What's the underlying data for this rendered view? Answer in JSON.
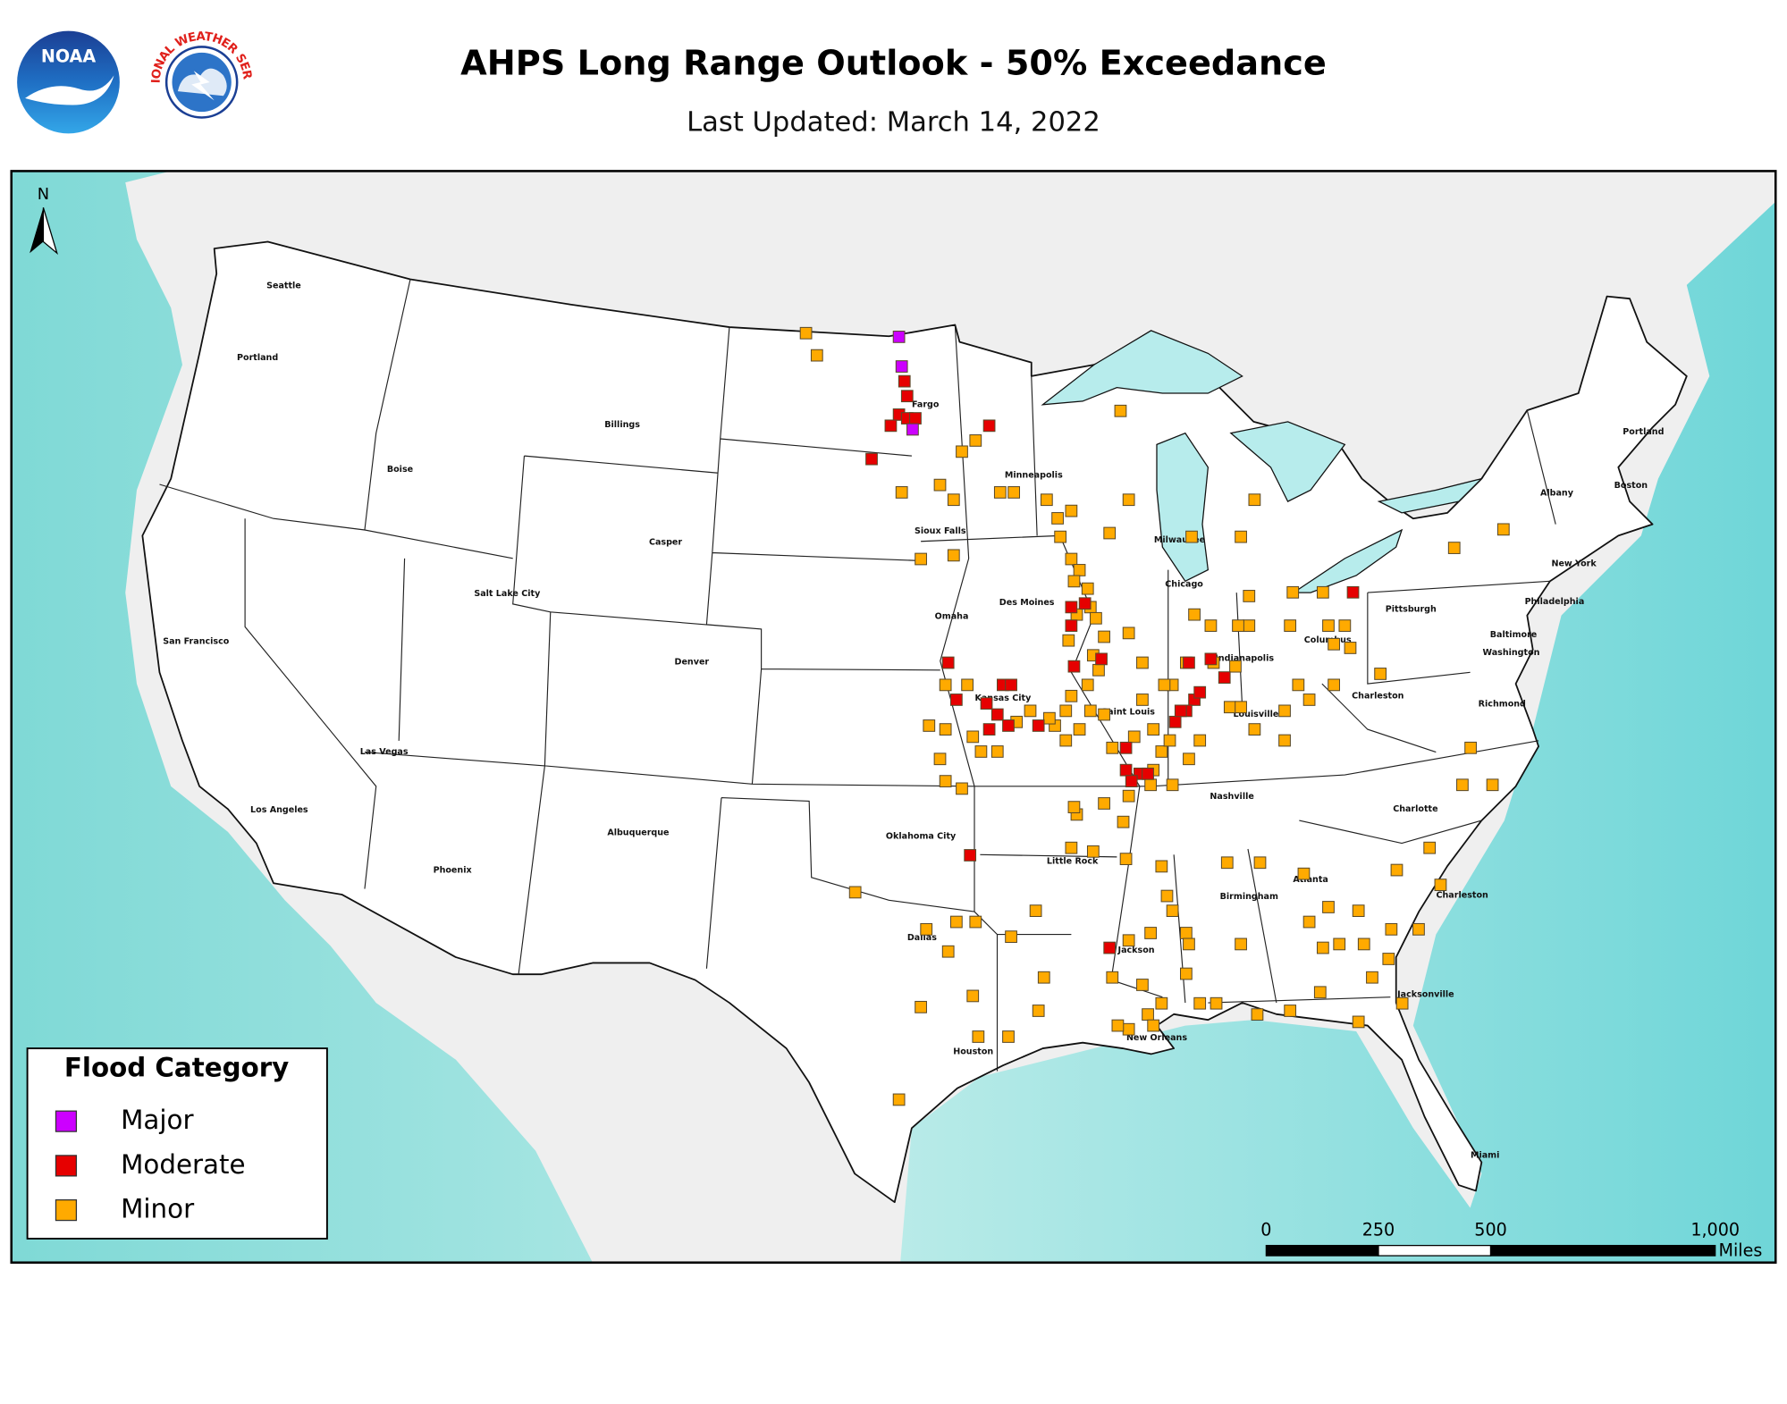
{
  "header": {
    "title": "AHPS Long Range Outlook - 50% Exceedance",
    "subtitle": "Last Updated: March 14, 2022",
    "logos": [
      "NOAA",
      "NATIONAL WEATHER SERVICE"
    ]
  },
  "map": {
    "type": "map",
    "north_label": "N",
    "cities": [
      "Seattle",
      "Portland",
      "Billings",
      "Boise",
      "Casper",
      "Salt Lake City",
      "San Francisco",
      "Denver",
      "Las Vegas",
      "Los Angeles",
      "Albuquerque",
      "Phoenix",
      "Oklahoma City",
      "Dallas",
      "Houston",
      "Little Rock",
      "Jackson",
      "New Orleans",
      "Birmingham",
      "Atlanta",
      "Nashville",
      "Charlotte",
      "Charleston",
      "Jacksonville",
      "Miami",
      "Kansas City",
      "Omaha",
      "Sioux Falls",
      "Des Moines",
      "Minneapolis",
      "Fargo",
      "Saint Louis",
      "Chicago",
      "Milwaukee",
      "Indianapolis",
      "Louisville",
      "Columbus",
      "Charleston",
      "Pittsburgh",
      "Richmond",
      "Washington",
      "Baltimore",
      "Philadelphia",
      "New York",
      "Albany",
      "Boston",
      "Portland"
    ],
    "legend_title": "Flood Category",
    "series": [
      {
        "name": "Major",
        "color": "#cc00ff",
        "lon": [
          -98.3,
          -98.2,
          -97.8
        ],
        "lat": [
          48.9,
          48.1,
          46.4
        ]
      },
      {
        "name": "Moderate",
        "color": "#e60000",
        "lon": [
          -98.1,
          -98.0,
          -98.3,
          -98.0,
          -97.7,
          -98.6,
          -95.0,
          -99.3,
          -96.5,
          -96.2,
          -94.5,
          -94.2,
          -95.1,
          -94.7,
          -95.0,
          -94.3,
          -93.2,
          -92.0,
          -92.0,
          -91.5,
          -91.9,
          -90.9,
          -87.7,
          -86.9,
          -86.4,
          -87.5,
          -87.8,
          -88.2,
          -88.0,
          -87.3,
          -90.0,
          -89.5,
          -90.0,
          -89.2,
          -89.8,
          -95.7,
          -90.6,
          -81.7
        ],
        "lat": [
          47.7,
          47.3,
          46.8,
          46.7,
          46.7,
          46.5,
          46.5,
          45.6,
          40.1,
          39.1,
          39.5,
          39.5,
          39.0,
          38.7,
          38.3,
          38.4,
          38.4,
          41.6,
          41.1,
          41.7,
          40.0,
          40.2,
          40.1,
          40.2,
          39.7,
          39.1,
          38.8,
          38.5,
          38.8,
          39.3,
          37.8,
          37.1,
          37.2,
          37.1,
          36.9,
          34.9,
          32.4,
          42.0
        ]
      },
      {
        "name": "Minor",
        "color": "#ffaa00",
        "lon": [
          -101.7,
          -101.3,
          -95.5,
          -96.0,
          -98.2,
          -96.8,
          -96.3,
          -94.6,
          -94.1,
          -92.9,
          -92.0,
          -92.5,
          -92.4,
          -92.0,
          -91.7,
          -91.4,
          -91.3,
          -90.6,
          -89.9,
          -90.2,
          -85.3,
          -85.8,
          -87.6,
          -83.9,
          -82.8,
          -85.5,
          -86.9,
          -87.5,
          -85.5,
          -87.8,
          -86.8,
          -86.0,
          -85.9,
          -84.0,
          -82.6,
          -82.0,
          -82.4,
          -81.8,
          -80.7,
          -78.0,
          -76.2,
          -83.7,
          -82.4,
          -83.3,
          -84.2,
          -84.2,
          -85.3,
          -86.2,
          -85.8,
          -87.3,
          -87.7,
          -88.7,
          -89.0,
          -88.4,
          -88.3,
          -88.6,
          -89.4,
          -89.4,
          -89.9,
          -90.8,
          -91.2,
          -91.0,
          -91.4,
          -92.0,
          -92.2,
          -92.6,
          -92.2,
          -91.3,
          -90.8,
          -91.7,
          -90.5,
          -89.7,
          -89.0,
          -92.1,
          -91.8,
          -91.1,
          -91.9,
          -92.8,
          -93.5,
          -94.0,
          -94.7,
          -95.3,
          -95.6,
          -96.6,
          -96.8,
          -96.6,
          -96.0,
          -97.2,
          -95.8,
          -96.6,
          -97.5,
          -96.3,
          -88.3,
          -89.1,
          -89.9,
          -90.1,
          -90.8,
          -91.8,
          -92.0,
          -91.2,
          -90.0,
          -88.7,
          -88.5,
          -88.3,
          -87.8,
          -87.7,
          -89.1,
          -89.9,
          -90.5,
          -89.4,
          -88.7,
          -87.8,
          -87.3,
          -89.2,
          -89.0,
          -89.9,
          -90.3,
          -86.3,
          -85.1,
          -83.5,
          -82.6,
          -81.5,
          -82.2,
          -81.3,
          -80.3,
          -80.4,
          -81.0,
          -82.8,
          -83.3,
          -81.5,
          -84.0,
          -82.9,
          -85.2,
          -85.8,
          -86.7,
          -78.9,
          -80.1,
          -78.5,
          -79.3,
          -79.9,
          -77.7,
          -76.6,
          -77.4,
          -93.3,
          -94.2,
          -93.0,
          -93.2,
          -94.3,
          -95.4,
          -95.6,
          -97.5,
          -96.5,
          -95.5,
          -96.2,
          -97.3,
          -99.9,
          -98.3,
          -91.9
        ],
        "lat": [
          49.0,
          48.4,
          46.1,
          45.8,
          44.7,
          44.9,
          44.5,
          44.7,
          44.7,
          44.5,
          44.2,
          44.0,
          43.5,
          42.9,
          42.6,
          42.1,
          41.6,
          43.6,
          44.5,
          46.9,
          44.5,
          43.5,
          43.5,
          42.0,
          42.0,
          41.9,
          41.1,
          41.4,
          41.1,
          40.1,
          40.1,
          40.0,
          41.1,
          41.1,
          41.1,
          41.1,
          40.6,
          40.5,
          39.8,
          43.2,
          43.7,
          39.5,
          39.5,
          39.1,
          38.8,
          38.0,
          38.3,
          38.9,
          38.9,
          38.0,
          37.5,
          37.7,
          37.2,
          38.0,
          39.5,
          39.5,
          40.1,
          39.1,
          40.9,
          40.8,
          40.3,
          39.9,
          39.5,
          39.2,
          38.8,
          38.4,
          38.0,
          38.8,
          38.7,
          38.3,
          37.8,
          38.1,
          38.3,
          40.7,
          41.4,
          41.3,
          42.3,
          38.6,
          38.8,
          38.5,
          37.7,
          37.7,
          38.1,
          38.3,
          37.5,
          36.9,
          36.7,
          38.4,
          39.5,
          39.5,
          42.9,
          43.0,
          36.8,
          36.8,
          36.5,
          35.8,
          36.3,
          36.0,
          35.1,
          35.0,
          34.8,
          34.6,
          33.8,
          33.4,
          32.8,
          32.5,
          32.8,
          32.6,
          31.6,
          31.4,
          30.9,
          31.7,
          30.9,
          30.6,
          30.3,
          30.2,
          30.3,
          34.7,
          34.7,
          34.4,
          33.5,
          33.4,
          32.5,
          32.5,
          32.9,
          32.1,
          31.6,
          32.4,
          33.1,
          30.4,
          30.7,
          31.2,
          30.6,
          32.5,
          30.9,
          35.1,
          34.5,
          34.1,
          32.9,
          30.9,
          36.8,
          36.8,
          37.8,
          33.4,
          32.7,
          31.6,
          30.7,
          30.0,
          30.0,
          31.1,
          30.8,
          32.3,
          33.1,
          33.1,
          32.9,
          33.9,
          28.3,
          36.2
        ]
      }
    ],
    "scale_bar": {
      "ticks": [
        0,
        250,
        500,
        {
          "value": 1000,
          "label": "1,000"
        }
      ],
      "unit": "Miles"
    }
  }
}
